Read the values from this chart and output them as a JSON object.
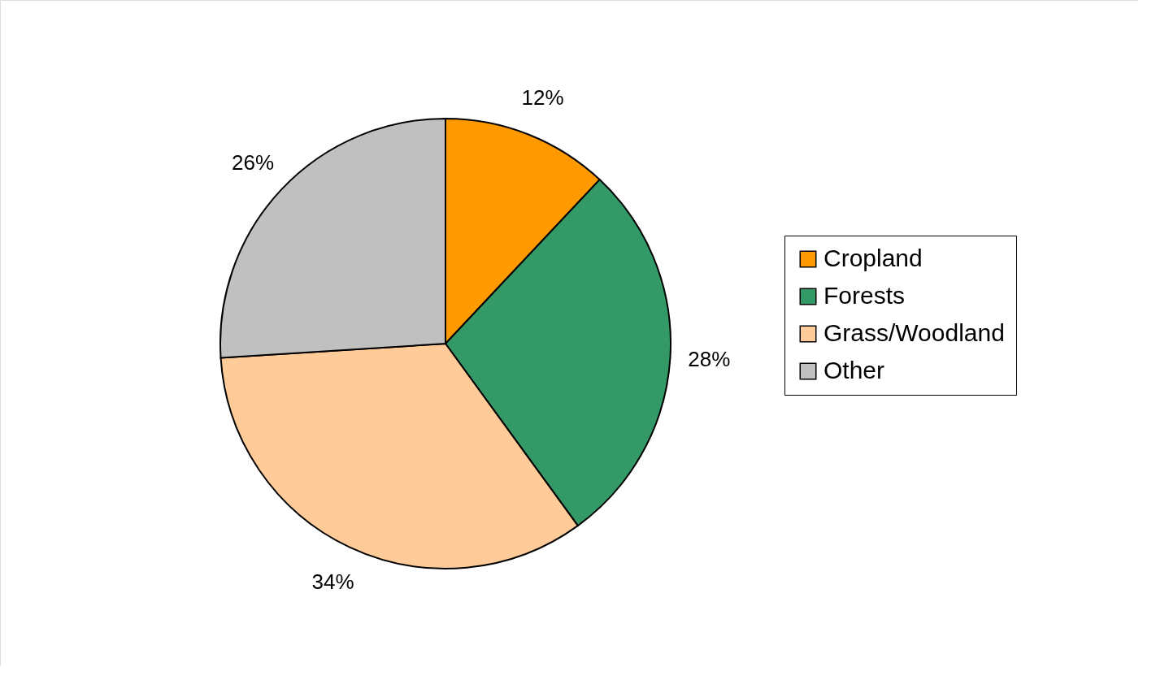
{
  "chart_data": {
    "type": "pie",
    "categories": [
      "Cropland",
      "Forests",
      "Grass/Woodland",
      "Other"
    ],
    "values": [
      12,
      28,
      34,
      26
    ],
    "colors": [
      "#ff9900",
      "#339966",
      "#ffcc99",
      "#c0c0c0"
    ],
    "value_labels": [
      "12%",
      "28%",
      "34%",
      "26%"
    ],
    "legend": "right"
  }
}
